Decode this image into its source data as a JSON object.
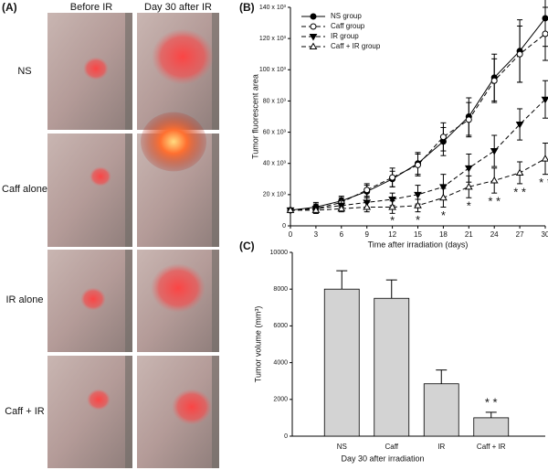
{
  "panel_a": {
    "panel_label": "(A)",
    "columns": [
      "Before IR",
      "Day 30 after IR"
    ],
    "rows": [
      "NS",
      "Caff alone",
      "IR alone",
      "Caff + IR"
    ]
  },
  "chart_data": [
    {
      "type": "line",
      "panel_label": "(B)",
      "xlabel": "Time after irradiation (days)",
      "ylabel": "Tumor fluorescent area",
      "x": [
        0,
        3,
        6,
        9,
        12,
        15,
        18,
        21,
        24,
        27,
        30
      ],
      "xlim": [
        0,
        30
      ],
      "xticks": [
        0,
        3,
        6,
        9,
        12,
        15,
        18,
        21,
        24,
        27,
        30
      ],
      "ylim": [
        0,
        140000
      ],
      "yticks": [
        0,
        {
          "value": 20000,
          "label": "20 x 10³"
        },
        {
          "value": 40000,
          "label": "40 x 10³"
        },
        {
          "value": 60000,
          "label": "60 x 10³"
        },
        {
          "value": 80000,
          "label": "80 x 10³"
        },
        {
          "value": 100000,
          "label": "100 x 10³"
        },
        {
          "value": 120000,
          "label": "120 x 10³"
        },
        {
          "value": 140000,
          "label": "140 x 10³"
        }
      ],
      "legend": "upper left",
      "series": [
        {
          "name": "NS group",
          "color": "#000000",
          "marker": "circle",
          "filled": true,
          "dashed": false,
          "values": [
            10000,
            12000,
            16000,
            22000,
            30000,
            40000,
            54000,
            70000,
            95000,
            112000,
            133000
          ],
          "errors": [
            1000,
            3000,
            3000,
            4000,
            5000,
            7000,
            9000,
            12000,
            15000,
            20000,
            18000
          ]
        },
        {
          "name": "Caff group",
          "color": "#000000",
          "marker": "circle",
          "filled": false,
          "dashed": true,
          "values": [
            10000,
            11000,
            15000,
            23000,
            31000,
            39000,
            57000,
            68000,
            93000,
            110000,
            123000
          ],
          "errors": [
            1000,
            3000,
            3000,
            4000,
            6000,
            7000,
            9000,
            11000,
            14000,
            18000,
            17000
          ]
        },
        {
          "name": "IR group",
          "color": "#000000",
          "marker": "triangle-down",
          "filled": true,
          "dashed": true,
          "values": [
            10000,
            11000,
            13000,
            15000,
            17000,
            20000,
            25000,
            37000,
            48000,
            65000,
            81000
          ],
          "errors": [
            1000,
            2000,
            3000,
            3000,
            4000,
            6000,
            8000,
            9000,
            10000,
            10000,
            12000
          ]
        },
        {
          "name": "Caff + IR group",
          "color": "#000000",
          "marker": "triangle-up",
          "filled": false,
          "dashed": true,
          "values": [
            10000,
            10000,
            11000,
            12000,
            12000,
            13000,
            18000,
            25000,
            29000,
            34000,
            43000
          ],
          "errors": [
            1000,
            2000,
            2000,
            3000,
            4000,
            4000,
            6000,
            7000,
            8000,
            7000,
            10000
          ]
        }
      ],
      "annotations": [
        {
          "x": 12,
          "text": "*"
        },
        {
          "x": 15,
          "text": "*"
        },
        {
          "x": 18,
          "text": "*"
        },
        {
          "x": 21,
          "text": "*"
        },
        {
          "x": 24,
          "text": "* *"
        },
        {
          "x": 27,
          "text": "* *"
        },
        {
          "x": 30,
          "text": "* *"
        }
      ]
    },
    {
      "type": "bar",
      "panel_label": "(C)",
      "xlabel": "Day 30 after irradiation",
      "ylabel": "Tumor volume (mm³)",
      "categories": [
        "NS",
        "Caff",
        "IR",
        "Caff + IR"
      ],
      "values": [
        8000,
        7500,
        2850,
        1000
      ],
      "errors": [
        1000,
        1000,
        750,
        300
      ],
      "color": "#d3d3d3",
      "ylim": [
        0,
        10000
      ],
      "yticks": [
        0,
        2000,
        4000,
        6000,
        8000,
        10000
      ],
      "annotations": [
        {
          "category": "Caff + IR",
          "text": "* *"
        }
      ]
    }
  ]
}
